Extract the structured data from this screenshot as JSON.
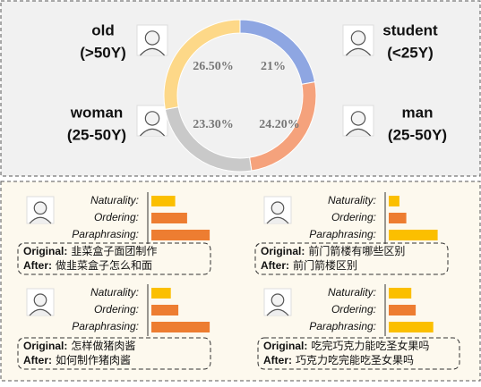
{
  "groups": [
    {
      "name": "old",
      "range": "(>50Y)"
    },
    {
      "name": "student",
      "range": "(<25Y)"
    },
    {
      "name": "woman",
      "range": "(25-50Y)"
    },
    {
      "name": "man",
      "range": "(25-50Y)"
    }
  ],
  "chart_data": [
    {
      "type": "pie",
      "categories": [
        "student",
        "man",
        "woman",
        "old"
      ],
      "values": [
        21,
        24.2,
        23.3,
        26.5
      ],
      "value_labels": [
        "21%",
        "24.20%",
        "23.30%",
        "26.50%"
      ],
      "colors": [
        "#8ea6e2",
        "#f5a27c",
        "#c9c9c9",
        "#fdd888"
      ]
    },
    {
      "type": "bar",
      "categories": [
        "Naturality:",
        "Ordering:",
        "Paraphrasing:"
      ],
      "values": [
        38,
        57,
        93
      ],
      "colors": [
        "#fbbf00",
        "#ed7d31",
        "#ed7d31"
      ],
      "xlim": [
        0,
        100
      ]
    },
    {
      "type": "bar",
      "categories": [
        "Naturality:",
        "Ordering:",
        "Paraphrasing:"
      ],
      "values": [
        17,
        28,
        78
      ],
      "colors": [
        "#fbbf00",
        "#ed7d31",
        "#fbbf00"
      ],
      "xlim": [
        0,
        100
      ]
    },
    {
      "type": "bar",
      "categories": [
        "Naturality:",
        "Ordering:",
        "Paraphrasing:"
      ],
      "values": [
        31,
        43,
        93
      ],
      "colors": [
        "#fbbf00",
        "#ed7d31",
        "#ed7d31"
      ],
      "xlim": [
        0,
        100
      ]
    },
    {
      "type": "bar",
      "categories": [
        "Naturality:",
        "Ordering:",
        "Paraphrasing:"
      ],
      "values": [
        36,
        43,
        71
      ],
      "colors": [
        "#fbbf00",
        "#ed7d31",
        "#fbbf00"
      ],
      "xlim": [
        0,
        100
      ]
    }
  ],
  "examples": [
    {
      "original_label": "Original:",
      "original": "韭菜盒子面团制作",
      "after_label": "After:",
      "after": "做韭菜盒子怎么和面"
    },
    {
      "original_label": "Original:",
      "original": "前门箭楼有哪些区别",
      "after_label": "After:",
      "after": "前门箭楼区别"
    },
    {
      "original_label": "Original:",
      "original": "怎样做猪肉酱",
      "after_label": "After:",
      "after": "如何制作猪肉酱"
    },
    {
      "original_label": "Original:",
      "original": "吃完巧克力能吃圣女果吗",
      "after_label": "After:",
      "after": "巧克力吃完能吃圣女果吗"
    }
  ]
}
